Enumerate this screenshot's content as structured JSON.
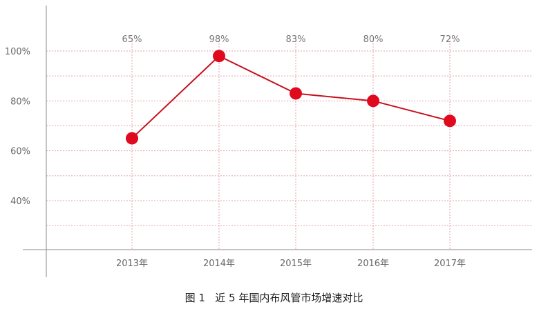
{
  "caption": "图 1   近 5 年国内布风管市场增速对比",
  "colors": {
    "series": "#c8101e",
    "marker": "#e00a1e",
    "grid": "#e6a0a8",
    "axis": "#8a8a8a"
  },
  "chart_data": {
    "type": "line",
    "categories": [
      "2013年",
      "2014年",
      "2015年",
      "2016年",
      "2017年"
    ],
    "series": [
      {
        "values": [
          65,
          98,
          83,
          80,
          72
        ]
      }
    ],
    "data_labels": [
      "65%",
      "98%",
      "83%",
      "80%",
      "72%"
    ],
    "y_ticks": [
      {
        "value": 40,
        "label": "40%"
      },
      {
        "value": 60,
        "label": "60%"
      },
      {
        "value": 80,
        "label": "80%"
      },
      {
        "value": 100,
        "label": "100%"
      }
    ],
    "y_gridlines": [
      30,
      40,
      50,
      60,
      70,
      80,
      90,
      100
    ],
    "ylim": [
      20,
      113
    ],
    "grid": true,
    "legend": false
  }
}
